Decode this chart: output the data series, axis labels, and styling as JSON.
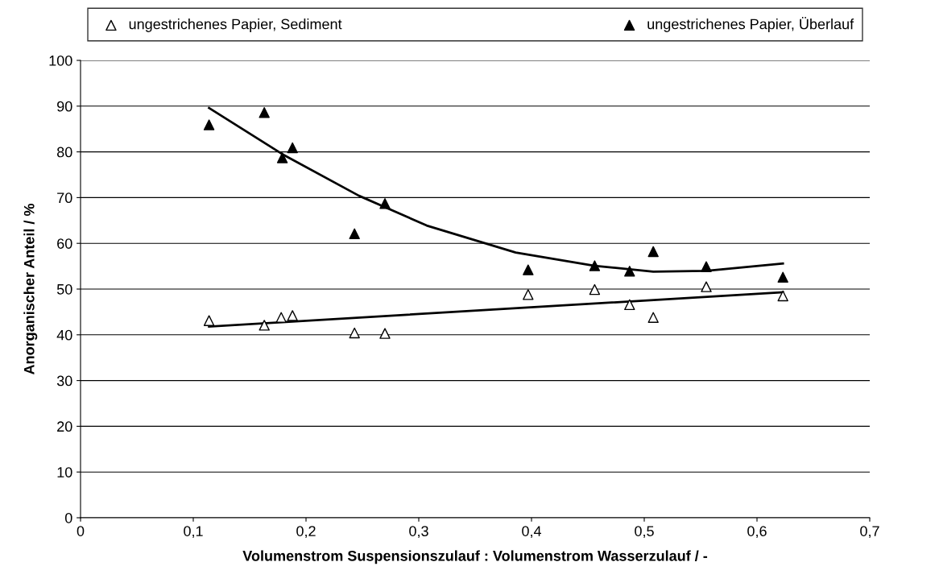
{
  "chart_data": {
    "type": "scatter",
    "xlabel": "Volumenstrom Suspensionszulauf : Volumenstrom Wasserzulauf / -",
    "ylabel": "Anorganischer Anteil / %",
    "series": [
      {
        "name": "ungestrichenes Papier, Sediment",
        "color": "#ffffff",
        "marker": "triangle",
        "x": [
          0.114,
          0.163,
          0.178,
          0.188,
          0.243,
          0.27,
          0.397,
          0.456,
          0.487,
          0.508,
          0.555,
          0.623
        ],
        "values": [
          43.1,
          42.1,
          43.8,
          44.2,
          40.4,
          40.3,
          48.8,
          49.9,
          46.6,
          43.8,
          50.5,
          48.5
        ]
      },
      {
        "name": "ungestrichenes Papier, Überlauf",
        "color": "#000000",
        "marker": "triangle",
        "x": [
          0.114,
          0.163,
          0.179,
          0.188,
          0.243,
          0.27,
          0.397,
          0.456,
          0.487,
          0.508,
          0.555,
          0.623
        ],
        "values": [
          85.9,
          88.6,
          78.7,
          80.9,
          62.1,
          68.7,
          54.2,
          55.1,
          53.9,
          58.2,
          54.9,
          52.6
        ]
      },
      {
        "type": "line",
        "color": "#000000",
        "marker": "none",
        "x": [
          0.114,
          0.623
        ],
        "values": [
          41.8,
          49.3
        ]
      },
      {
        "type": "line",
        "color": "#000000",
        "marker": "none",
        "x": [
          0.114,
          0.179,
          0.247,
          0.307,
          0.386,
          0.456,
          0.508,
          0.555,
          0.623
        ],
        "values": [
          89.6,
          79.5,
          70.4,
          63.9,
          58.0,
          55.1,
          53.8,
          54.0,
          55.6
        ]
      }
    ],
    "xlim": [
      0,
      0.7
    ],
    "xticks": [
      0,
      {
        "value": 0.1,
        "label": "0,1"
      },
      {
        "value": 0.2,
        "label": "0,2"
      },
      {
        "value": 0.3,
        "label": "0,3"
      },
      {
        "value": 0.4,
        "label": "0,4"
      },
      {
        "value": 0.5,
        "label": "0,5"
      },
      {
        "value": 0.6,
        "label": "0,6"
      },
      {
        "value": 0.7,
        "label": "0,7"
      }
    ],
    "ylim": [
      0,
      100
    ],
    "yticks": [
      0,
      10,
      20,
      30,
      40,
      50,
      60,
      70,
      80,
      90,
      100
    ],
    "grid": "y",
    "legend": "top"
  }
}
